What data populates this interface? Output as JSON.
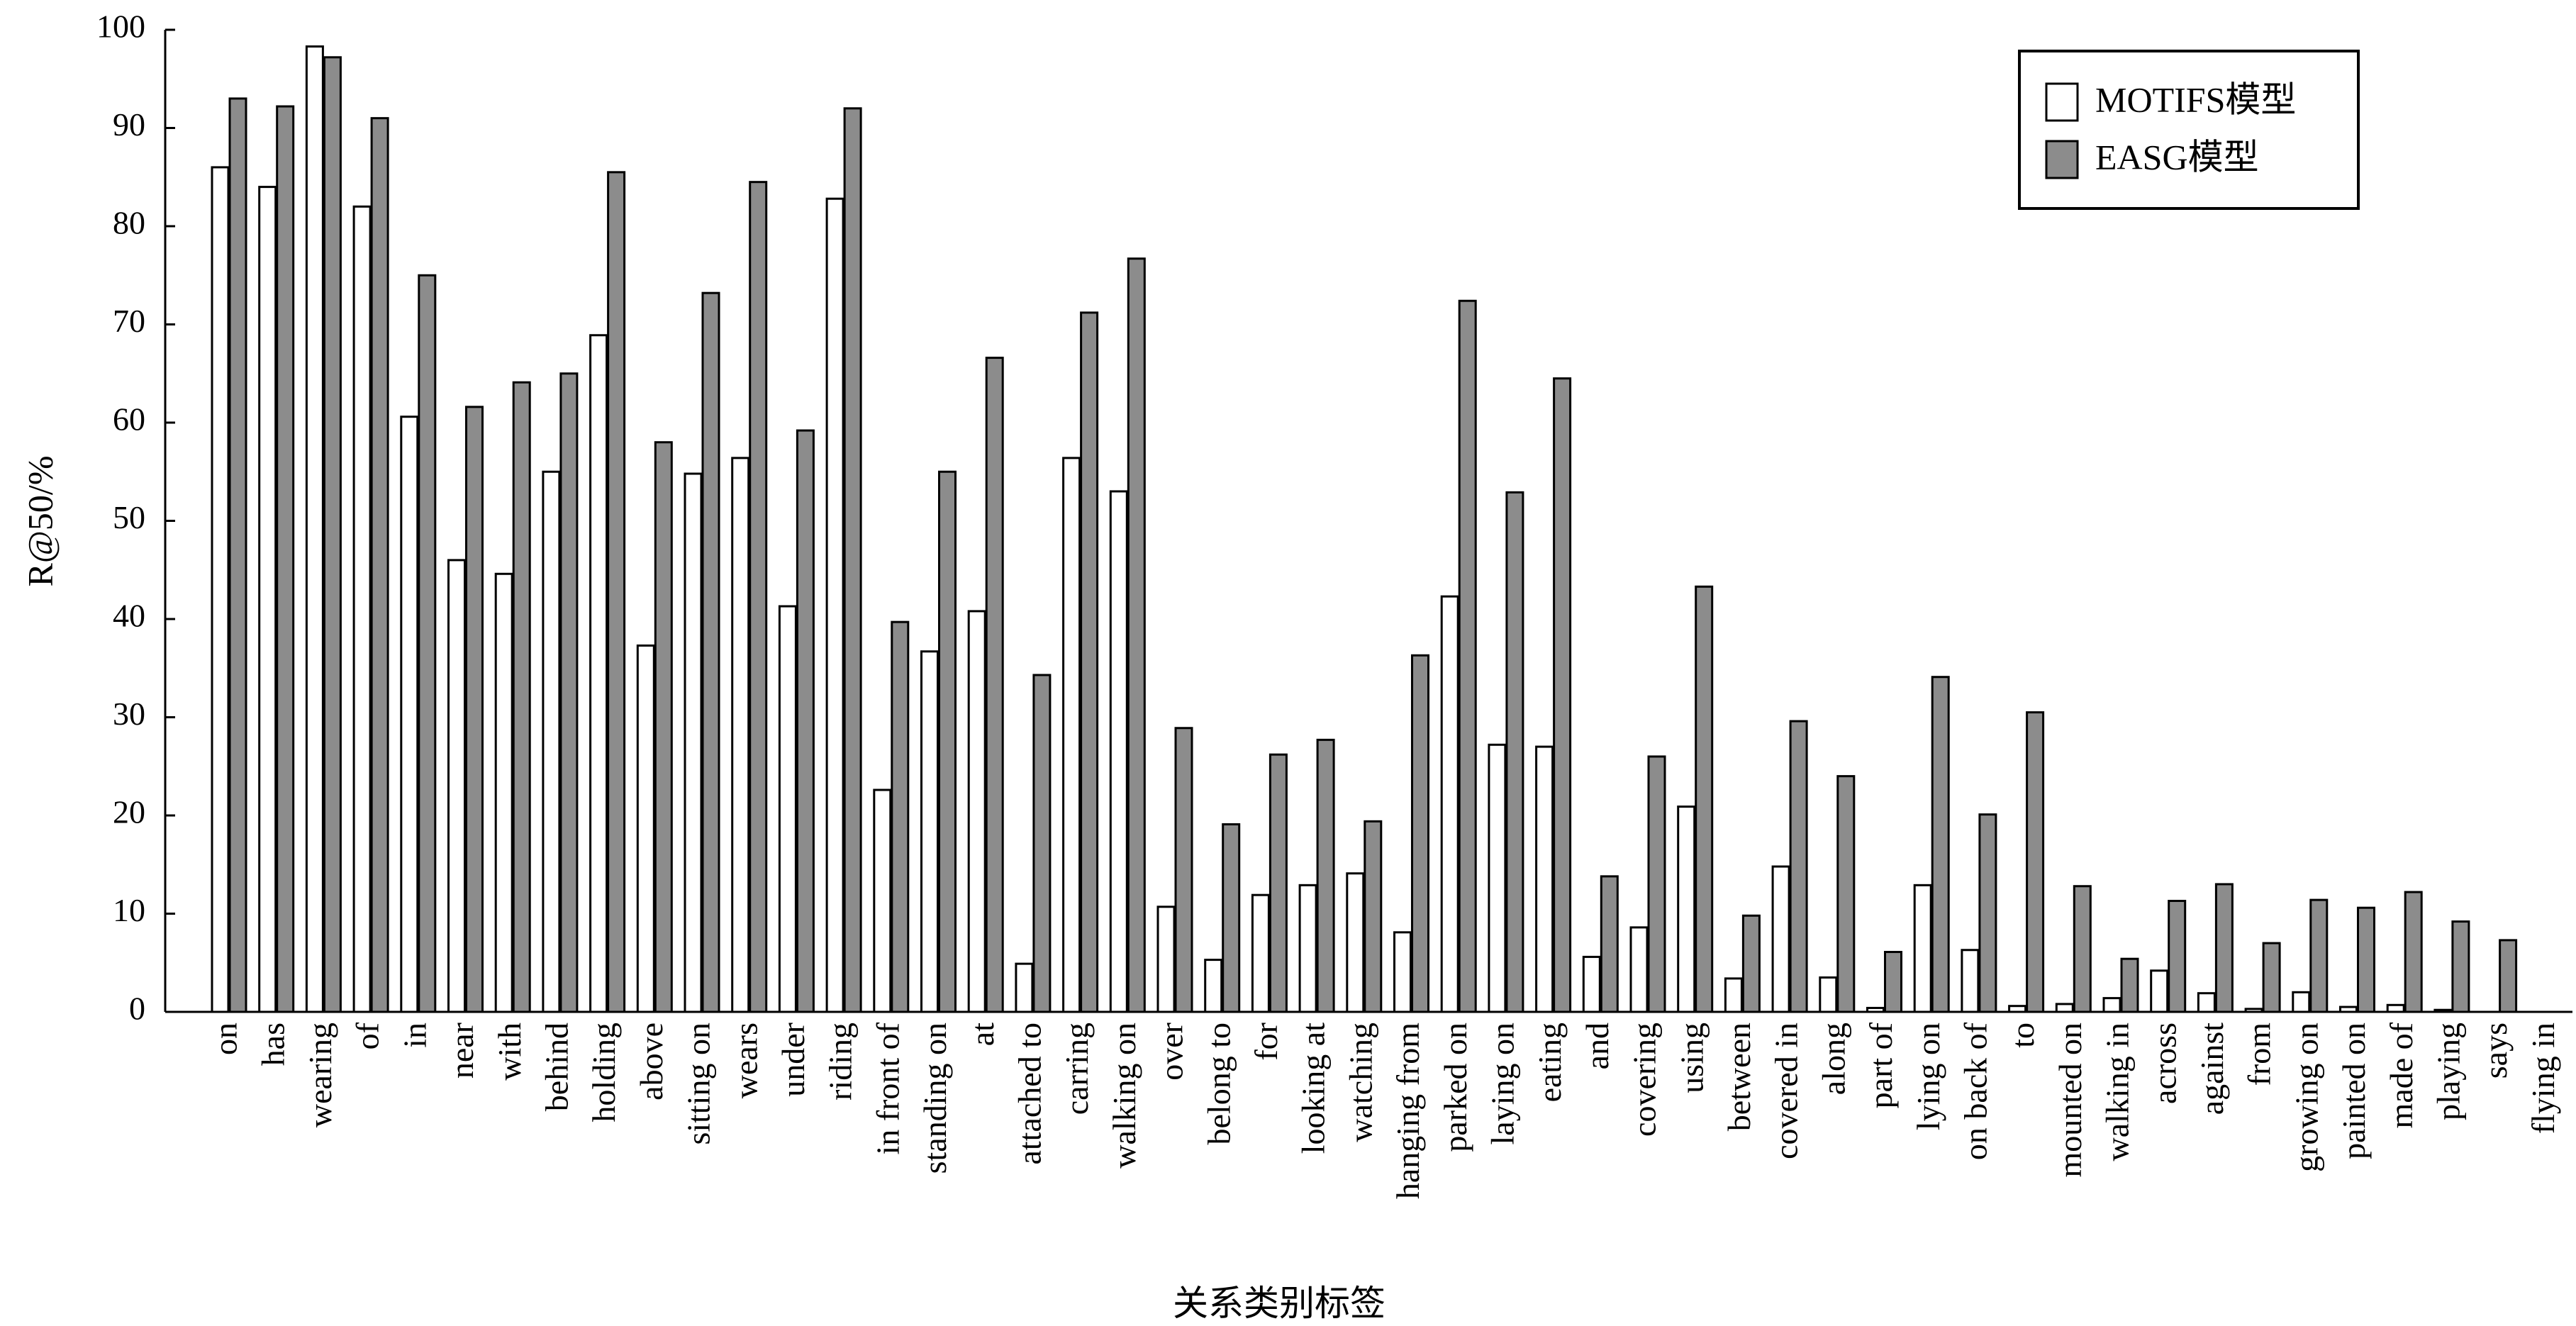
{
  "chart_data": {
    "type": "bar",
    "ylabel": "R@50/%",
    "xlabel": "关系类别标签",
    "ylim": [
      0,
      100
    ],
    "yticks": [
      0,
      10,
      20,
      30,
      40,
      50,
      60,
      70,
      80,
      90,
      100
    ],
    "grid": false,
    "legend_position": "top-right",
    "categories": [
      "on",
      "has",
      "wearing",
      "of",
      "in",
      "near",
      "with",
      "behind",
      "holding",
      "above",
      "sitting on",
      "wears",
      "under",
      "riding",
      "in front of",
      "standing on",
      "at",
      "attached to",
      "carring",
      "walking on",
      "over",
      "belong to",
      "for",
      "looking at",
      "watching",
      "hanging from",
      "parked on",
      "laying on",
      "eating",
      "and",
      "covering",
      "using",
      "between",
      "covered in",
      "along",
      "part of",
      "lying on",
      "on back of",
      "to",
      "mounted on",
      "walking in",
      "across",
      "against",
      "from",
      "growing on",
      "painted on",
      "made of",
      "playing",
      "says",
      "flying in"
    ],
    "series": [
      {
        "name": "MOTIFS模型",
        "color": "#ffffff",
        "values": [
          86.0,
          84.0,
          98.3,
          82.0,
          60.6,
          46.0,
          44.6,
          55.0,
          68.9,
          37.3,
          54.8,
          56.4,
          41.3,
          82.8,
          22.6,
          36.7,
          40.8,
          4.9,
          56.4,
          53.0,
          10.7,
          5.3,
          11.9,
          12.9,
          14.1,
          8.1,
          42.3,
          27.2,
          27.0,
          5.6,
          8.6,
          20.9,
          3.4,
          14.8,
          3.5,
          0.4,
          12.9,
          6.3,
          0.6,
          0.8,
          1.4,
          4.2,
          1.9,
          0.3,
          2.0,
          0.5,
          0.7,
          0.2,
          0.0,
          0.0
        ]
      },
      {
        "name": "EASG模型",
        "color": "#8c8c8c",
        "values": [
          93.0,
          92.2,
          97.2,
          91.0,
          75.0,
          61.6,
          64.1,
          65.0,
          85.5,
          58.0,
          73.2,
          84.5,
          59.2,
          92.0,
          39.7,
          55.0,
          66.6,
          34.3,
          71.2,
          76.7,
          28.9,
          19.1,
          26.2,
          27.7,
          19.4,
          36.3,
          72.4,
          52.9,
          64.5,
          13.8,
          26.0,
          43.3,
          9.8,
          29.6,
          24.0,
          6.1,
          34.1,
          20.1,
          30.5,
          12.8,
          5.4,
          11.3,
          13.0,
          7.0,
          11.4,
          10.6,
          12.2,
          9.2,
          7.3,
          0.0
        ]
      }
    ]
  }
}
